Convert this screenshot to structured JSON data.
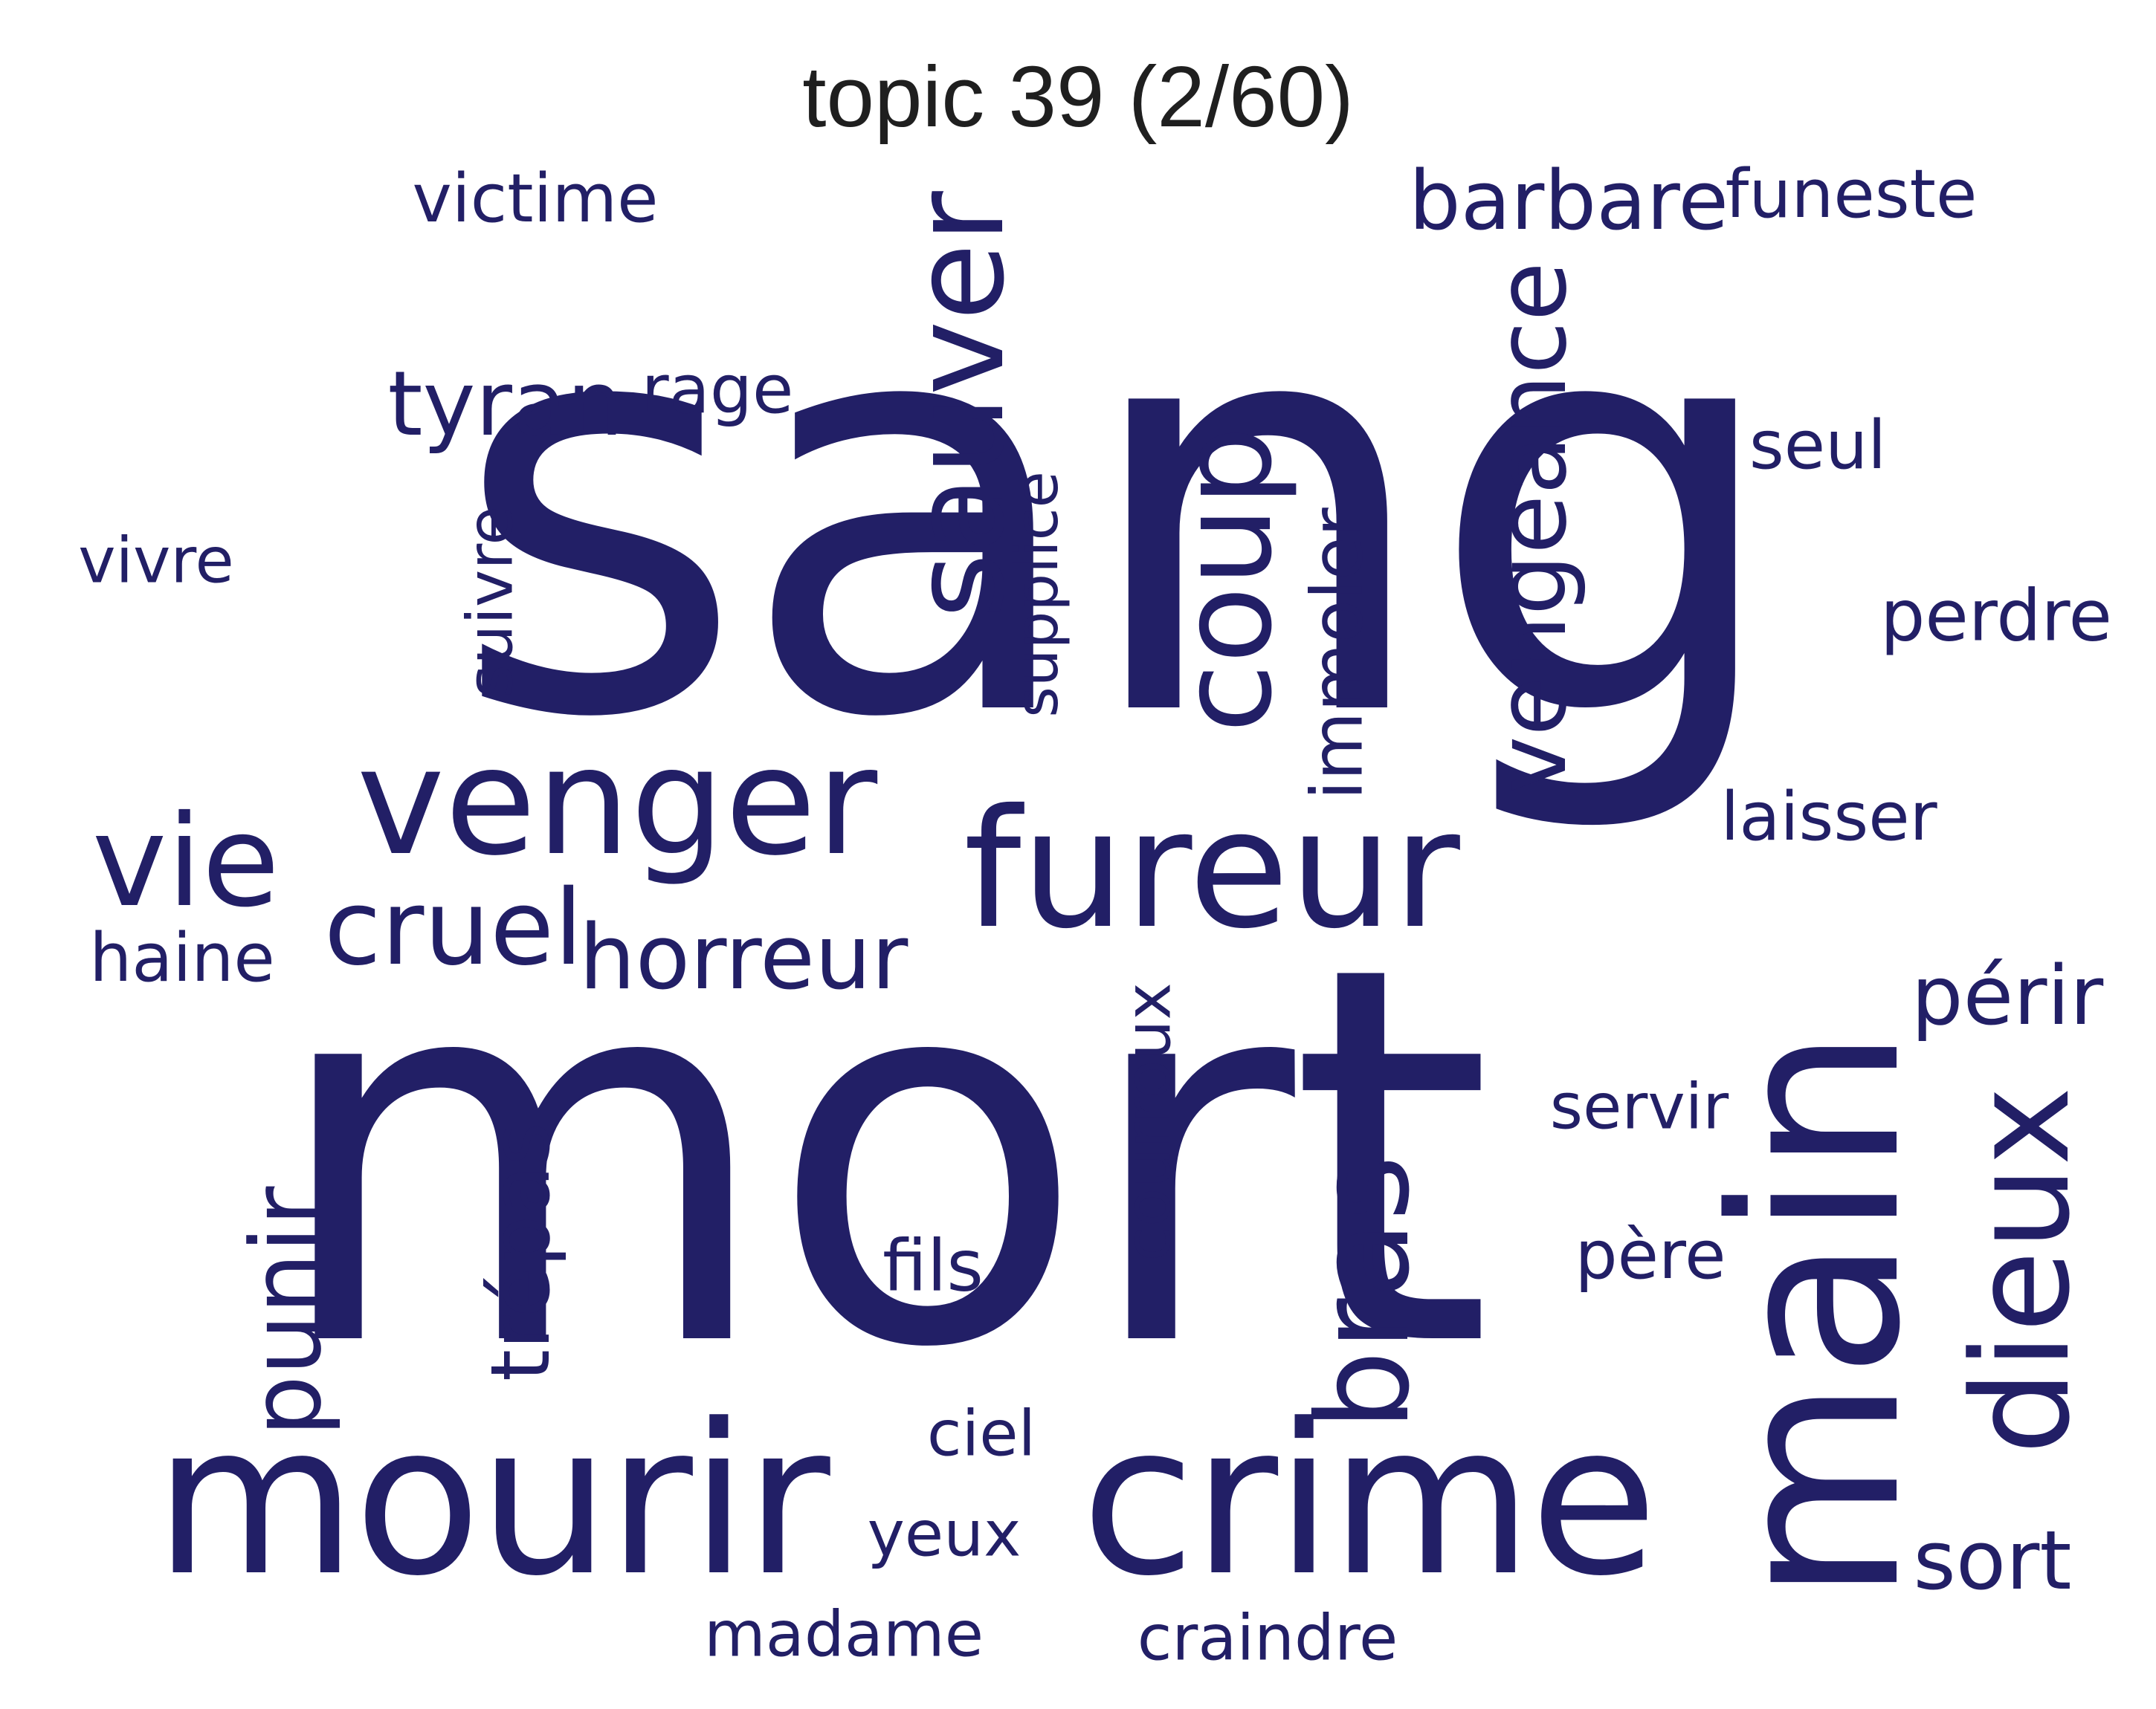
{
  "title": "topic 39 (2/60)",
  "word_color": "#221f66",
  "title_color": "#1f1f1f",
  "words": {
    "sang": "sang",
    "mort": "mort",
    "main": "main",
    "crime": "crime",
    "mourir": "mourir",
    "fureur": "fureur",
    "venger": "venger",
    "sauver": "sauver",
    "coup": "coup",
    "vengeance": "vengeance",
    "dieux": "dieux",
    "bras": "bras",
    "vie": "vie",
    "cruel": "cruel",
    "horreur": "horreur",
    "tyran": "tyran",
    "barbare": "barbare",
    "victime": "victime",
    "funeste": "funeste",
    "rage": "rage",
    "seul": "seul",
    "vivre": "vivre",
    "suivre": "suivre",
    "supplice": "supplice",
    "immoler": "immoler",
    "perdre": "perdre",
    "laisser": "laisser",
    "haine": "haine",
    "perir": "périr",
    "servir": "servir",
    "courroux": "courroux",
    "punir": "punir",
    "trepas": "trépas",
    "fils": "fils",
    "pere": "père",
    "ciel": "ciel",
    "yeux": "yeux",
    "sort": "sort",
    "madame": "madame",
    "craindre": "craindre"
  }
}
